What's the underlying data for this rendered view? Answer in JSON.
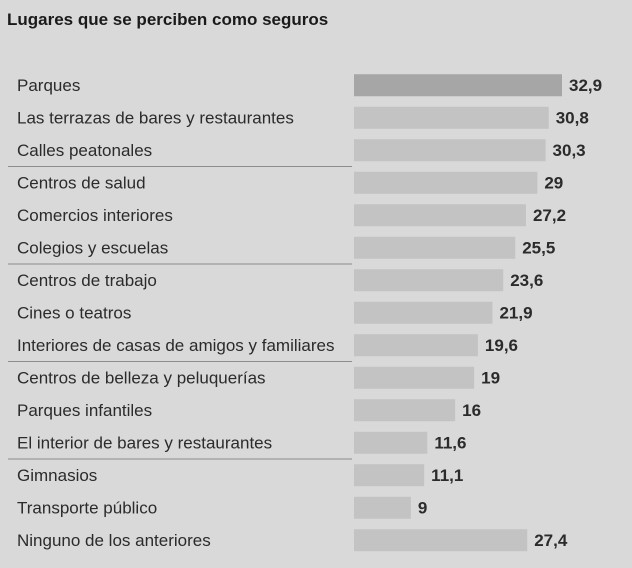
{
  "title": "Lugares que se perciben como seguros",
  "chart_data": {
    "type": "bar",
    "orientation": "horizontal",
    "title": "Lugares que se perciben como seguros",
    "categories": [
      "Parques",
      "Las terrazas de bares y restaurantes",
      "Calles peatonales",
      "Centros de salud",
      "Comercios interiores",
      "Colegios y escuelas",
      "Centros de trabajo",
      "Cines o teatros",
      "Interiores de casas de amigos y familiares",
      "Centros de belleza y peluquerías",
      "Parques infantiles",
      "El interior de bares y restaurantes",
      "Gimnasios",
      "Transporte público",
      "Ninguno de los anteriores"
    ],
    "values": [
      32.9,
      30.8,
      30.3,
      29,
      27.2,
      25.5,
      23.6,
      21.9,
      19.6,
      19,
      16,
      11.6,
      11.1,
      9,
      27.4
    ],
    "value_labels": [
      "32,9",
      "30,8",
      "30,3",
      "29",
      "27,2",
      "25,5",
      "23,6",
      "21,9",
      "19,6",
      "19",
      "16",
      "11,6",
      "11,1",
      "9",
      "27,4"
    ],
    "xlim": [
      0,
      32.9
    ],
    "grid": false,
    "legend": "none",
    "colors": {
      "highlight_bar": "#a6a6a6",
      "bar": "#c3c3c3",
      "text": "#2b2b2b",
      "separator": "#8c8c8c",
      "background": "#d9d9d9"
    }
  }
}
